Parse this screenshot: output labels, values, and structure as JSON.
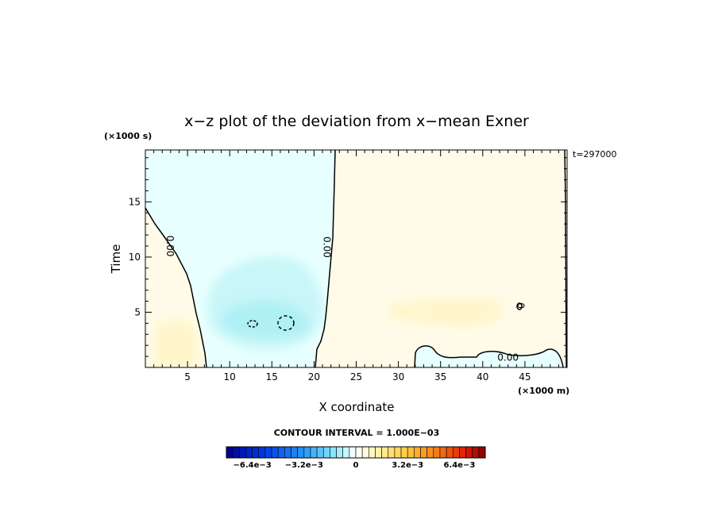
{
  "chart_data": {
    "type": "contour",
    "title": "x−z plot of the deviation from x−mean Exner",
    "xlabel": "X coordinate",
    "ylabel": "Time",
    "x_unit": "(×1000 m)",
    "y_unit": "(×1000 s)",
    "time_stamp": "t=297000",
    "xlim": [
      0,
      50
    ],
    "ylim": [
      0,
      19.7
    ],
    "x_ticks": [
      5,
      10,
      15,
      20,
      25,
      30,
      35,
      40,
      45
    ],
    "x_tick_labels": [
      "5",
      "10",
      "15",
      "20",
      "25",
      "30",
      "35",
      "40",
      "45"
    ],
    "y_ticks": [
      5,
      10,
      15
    ],
    "y_tick_labels": [
      "5",
      "10",
      "15"
    ],
    "contour_labels": [
      {
        "text": "0.00",
        "x": 2.9,
        "y": 11.0,
        "rotate": 90
      },
      {
        "text": "0.00",
        "x": 21.5,
        "y": 10.9,
        "rotate": 90
      },
      {
        "text": "0.00",
        "x": 43.0,
        "y": 0.9,
        "rotate": 0
      },
      {
        "text": "0",
        "x": 44.5,
        "y": 5.6,
        "rotate": 90
      }
    ],
    "colorbar": {
      "interval_text": "CONTOUR INTERVAL = 1.000E−03",
      "min": -0.008,
      "max": 0.008,
      "step": 0.0004,
      "tick_values": [
        -0.0064,
        -0.0032,
        0,
        0.0032,
        0.0064
      ],
      "tick_labels": [
        "−6.4e−3",
        "−3.2e−3",
        "0",
        "3.2e−3",
        "6.4e−3"
      ]
    },
    "grid": false,
    "legend": "colorbar-bottom"
  }
}
